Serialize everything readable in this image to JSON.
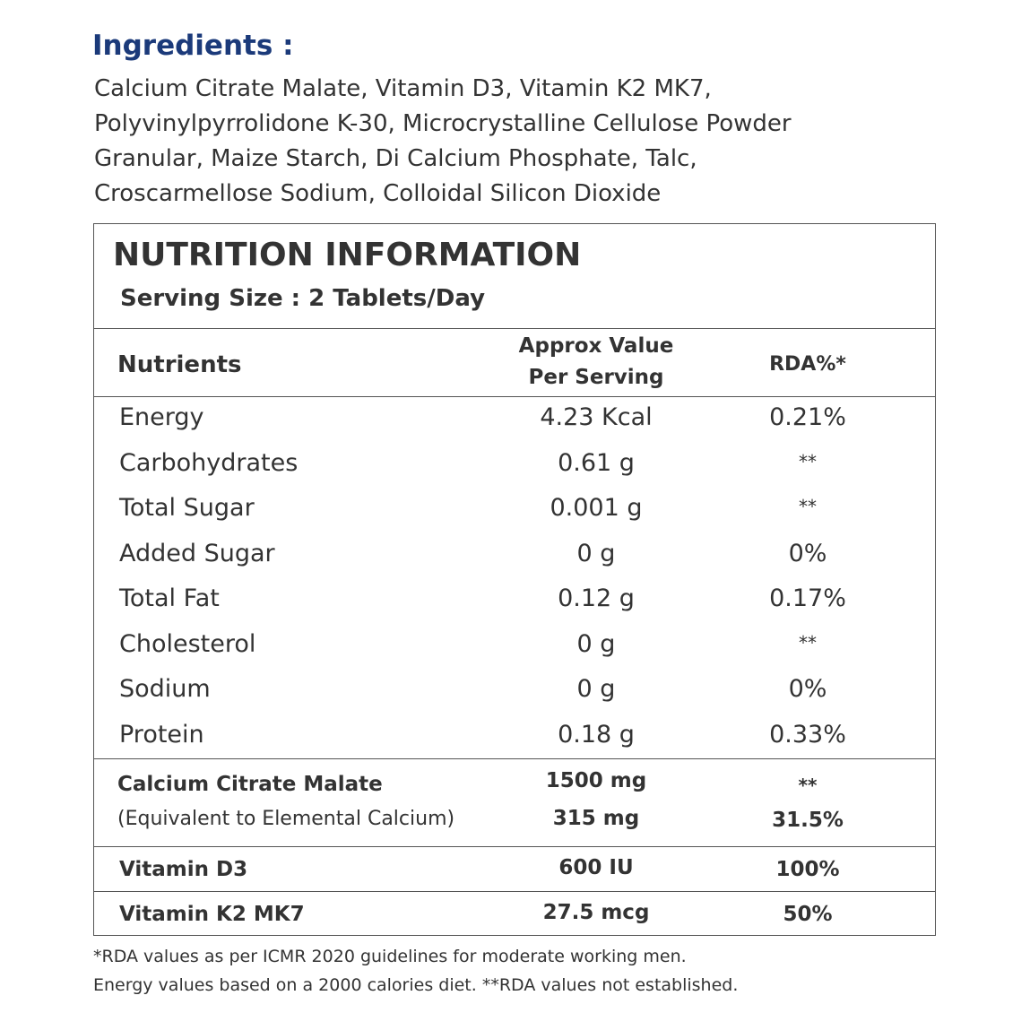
{
  "ingredients": {
    "title": "Ingredients :",
    "lines": [
      "Calcium Citrate Malate, Vitamin D3, Vitamin K2 MK7,",
      "Polyvinylpyrrolidone K-30, Microcrystalline Cellulose Powder",
      "Granular, Maize Starch, Di Calcium Phosphate, Talc,",
      "Croscarmellose Sodium, Colloidal Silicon Dioxide"
    ]
  },
  "nutrition": {
    "title": "NUTRITION INFORMATION",
    "serving": "Serving Size : 2 Tablets/Day",
    "header": {
      "nutrients": "Nutrients",
      "approx": [
        "Approx Value",
        "Per Serving"
      ],
      "rda": "RDA%*"
    },
    "rows": [
      [
        "Energy",
        "4.23 Kcal",
        "0.21%"
      ],
      [
        "Carbohydrates",
        "0.61 g",
        "**"
      ],
      [
        "Total Sugar",
        "0.001 g",
        "**"
      ],
      [
        "Added Sugar",
        "0 g",
        "0%"
      ],
      [
        "Total Fat",
        "0.12 g",
        "0.17%"
      ],
      [
        "Cholesterol",
        "0 g",
        "**"
      ],
      [
        "Sodium",
        "0 g",
        "0%"
      ],
      [
        "Protein",
        "0.18 g",
        "0.33%"
      ]
    ],
    "calcium": {
      "name": "Calcium Citrate Malate",
      "sub": "(Equivalent to Elemental Calcium)",
      "values": [
        "1500 mg",
        "315 mg"
      ],
      "rda": [
        "**",
        "31.5%"
      ]
    },
    "vitamins": [
      [
        "Vitamin D3",
        "600 IU",
        "100%"
      ],
      [
        "Vitamin K2 MK7",
        "27.5 mcg",
        "50%"
      ]
    ]
  },
  "footnotes": [
    "*RDA values as per ICMR 2020 guidelines for moderate working men.",
    "Energy values based on a 2000 calories diet. **RDA values not established."
  ]
}
